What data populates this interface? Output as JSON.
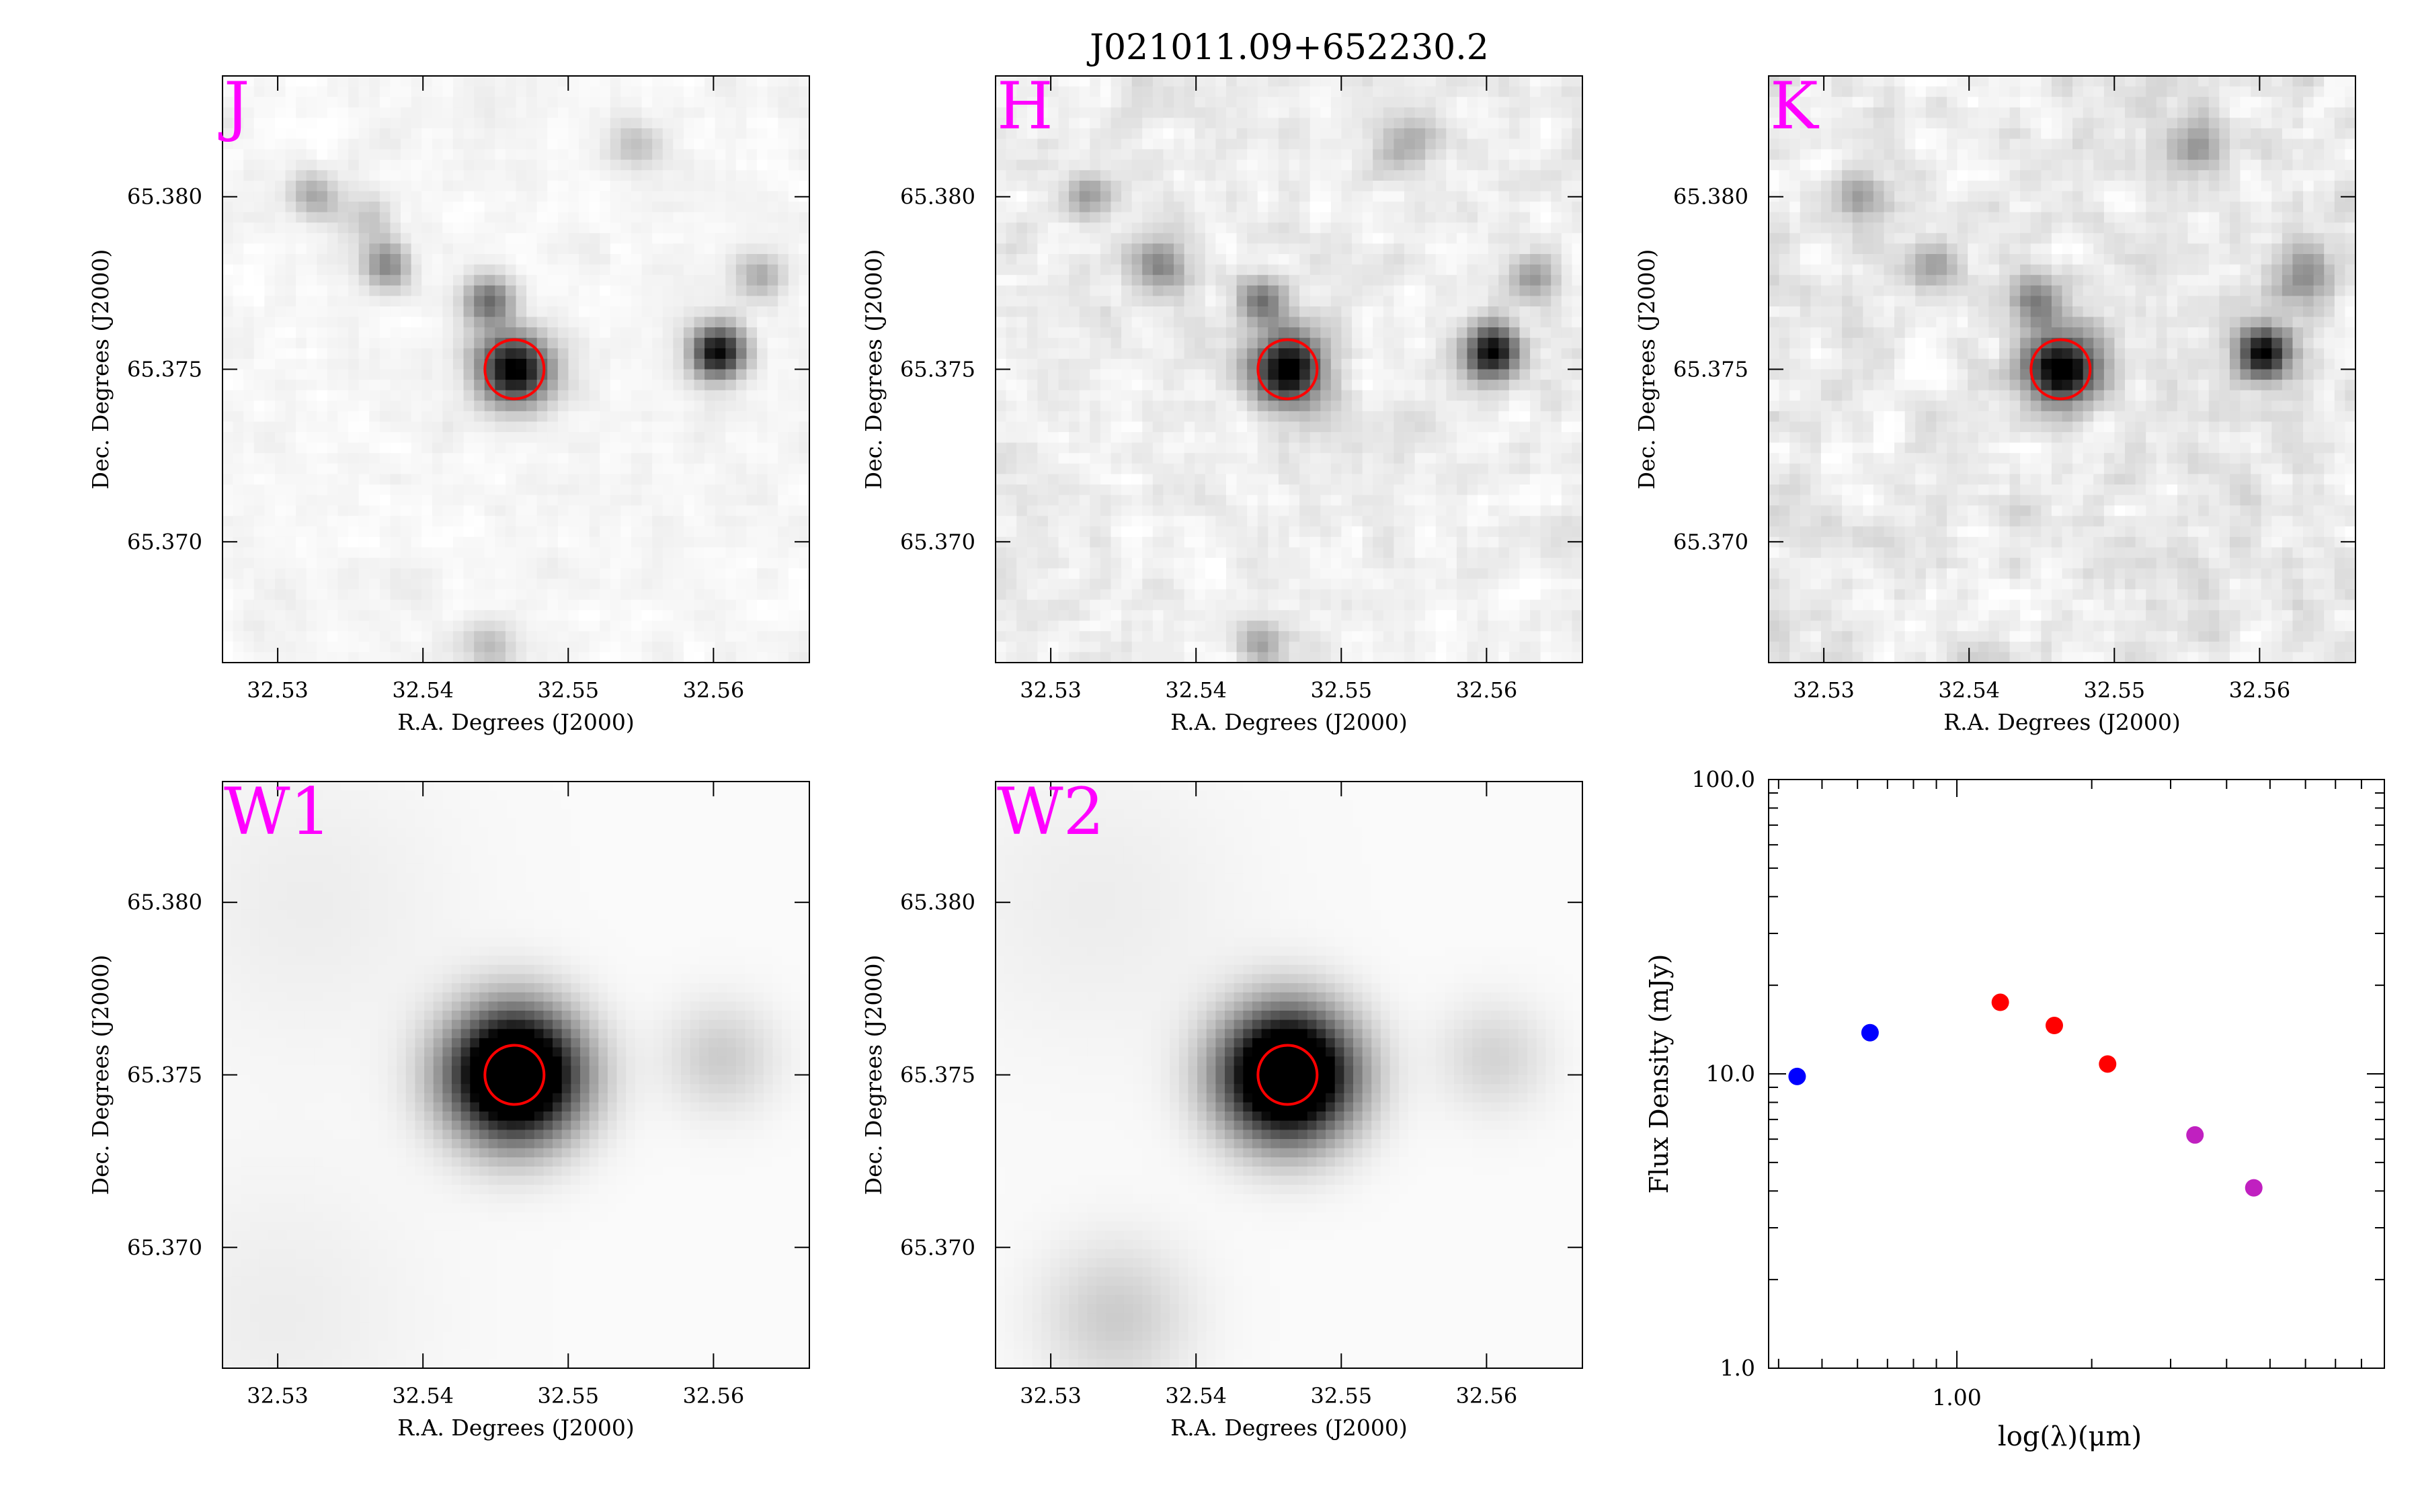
{
  "figure": {
    "title": "J021011.09+652230.2"
  },
  "image_panels": [
    {
      "band": "J",
      "xlabel": "R.A. Degrees (J2000)",
      "ylabel": "Dec. Degrees (J2000)",
      "xlim": [
        32.5262,
        32.5666
      ],
      "ylim": [
        65.3665,
        65.3835
      ],
      "x_ticks": [
        32.53,
        32.54,
        32.55,
        32.56
      ],
      "x_tick_labels": [
        "32.53",
        "32.54",
        "32.55",
        "32.56"
      ],
      "y_ticks": [
        65.37,
        65.375,
        65.38
      ],
      "y_tick_labels": [
        "65.370",
        "65.375",
        "65.380"
      ],
      "style": "sharp",
      "sources": [
        {
          "ra": 32.5463,
          "dec": 65.375,
          "amp": 1.0,
          "sigma": 0.00075
        },
        {
          "ra": 32.5603,
          "dec": 65.3755,
          "amp": 0.95,
          "sigma": 0.00055
        },
        {
          "ra": 32.5445,
          "dec": 65.377,
          "amp": 0.55,
          "sigma": 0.0005
        },
        {
          "ra": 32.5375,
          "dec": 65.378,
          "amp": 0.45,
          "sigma": 0.0005
        },
        {
          "ra": 32.5325,
          "dec": 65.38,
          "amp": 0.3,
          "sigma": 0.0005
        },
        {
          "ra": 32.5362,
          "dec": 65.3793,
          "amp": 0.18,
          "sigma": 0.0005
        },
        {
          "ra": 32.5632,
          "dec": 65.3777,
          "amp": 0.3,
          "sigma": 0.0005
        },
        {
          "ra": 32.5545,
          "dec": 65.3815,
          "amp": 0.2,
          "sigma": 0.0005
        },
        {
          "ra": 32.5445,
          "dec": 65.367,
          "amp": 0.25,
          "sigma": 0.0005
        }
      ],
      "marker": {
        "ra": 32.5463,
        "dec": 65.375,
        "color": "#ff0000"
      },
      "noise": 0.07
    },
    {
      "band": "H",
      "xlabel": "R.A. Degrees (J2000)",
      "ylabel": "Dec. Degrees (J2000)",
      "xlim": [
        32.5262,
        32.5666
      ],
      "ylim": [
        65.3665,
        65.3835
      ],
      "x_ticks": [
        32.53,
        32.54,
        32.55,
        32.56
      ],
      "x_tick_labels": [
        "32.53",
        "32.54",
        "32.55",
        "32.56"
      ],
      "y_ticks": [
        65.37,
        65.375,
        65.38
      ],
      "y_tick_labels": [
        "65.370",
        "65.375",
        "65.380"
      ],
      "style": "sharp",
      "sources": [
        {
          "ra": 32.5463,
          "dec": 65.375,
          "amp": 1.0,
          "sigma": 0.00075
        },
        {
          "ra": 32.5603,
          "dec": 65.3755,
          "amp": 0.95,
          "sigma": 0.00055
        },
        {
          "ra": 32.5445,
          "dec": 65.377,
          "amp": 0.5,
          "sigma": 0.0005
        },
        {
          "ra": 32.5375,
          "dec": 65.378,
          "amp": 0.45,
          "sigma": 0.0005
        },
        {
          "ra": 32.5325,
          "dec": 65.38,
          "amp": 0.35,
          "sigma": 0.0005
        },
        {
          "ra": 32.5632,
          "dec": 65.3777,
          "amp": 0.3,
          "sigma": 0.0005
        },
        {
          "ra": 32.5545,
          "dec": 65.3815,
          "amp": 0.25,
          "sigma": 0.0006
        },
        {
          "ra": 32.5445,
          "dec": 65.367,
          "amp": 0.3,
          "sigma": 0.0005
        }
      ],
      "marker": {
        "ra": 32.5463,
        "dec": 65.375,
        "color": "#ff0000"
      },
      "noise": 0.13
    },
    {
      "band": "K",
      "xlabel": "R.A. Degrees (J2000)",
      "ylabel": "Dec. Degrees (J2000)",
      "xlim": [
        32.5262,
        32.5666
      ],
      "ylim": [
        65.3665,
        65.3835
      ],
      "x_ticks": [
        32.53,
        32.54,
        32.55,
        32.56
      ],
      "x_tick_labels": [
        "32.53",
        "32.54",
        "32.55",
        "32.56"
      ],
      "y_ticks": [
        65.37,
        65.375,
        65.38
      ],
      "y_tick_labels": [
        "65.370",
        "65.375",
        "65.380"
      ],
      "style": "sharp",
      "sources": [
        {
          "ra": 32.5463,
          "dec": 65.375,
          "amp": 1.0,
          "sigma": 0.00075
        },
        {
          "ra": 32.5603,
          "dec": 65.3755,
          "amp": 0.95,
          "sigma": 0.00055
        },
        {
          "ra": 32.5445,
          "dec": 65.377,
          "amp": 0.45,
          "sigma": 0.0005
        },
        {
          "ra": 32.5375,
          "dec": 65.378,
          "amp": 0.35,
          "sigma": 0.0005
        },
        {
          "ra": 32.5325,
          "dec": 65.38,
          "amp": 0.3,
          "sigma": 0.0005
        },
        {
          "ra": 32.5632,
          "dec": 65.3777,
          "amp": 0.4,
          "sigma": 0.0006
        },
        {
          "ra": 32.5555,
          "dec": 65.3815,
          "amp": 0.25,
          "sigma": 0.0006
        }
      ],
      "marker": {
        "ra": 32.5463,
        "dec": 65.375,
        "color": "#ff0000"
      },
      "noise": 0.16
    },
    {
      "band": "W1",
      "xlabel": "R.A. Degrees (J2000)",
      "ylabel": "Dec. Degrees (J2000)",
      "xlim": [
        32.5262,
        32.5666
      ],
      "ylim": [
        65.3665,
        65.3835
      ],
      "x_ticks": [
        32.53,
        32.54,
        32.55,
        32.56
      ],
      "x_tick_labels": [
        "32.53",
        "32.54",
        "32.55",
        "32.56"
      ],
      "y_ticks": [
        65.37,
        65.375,
        65.38
      ],
      "y_tick_labels": [
        "65.370",
        "65.375",
        "65.380"
      ],
      "style": "smooth",
      "sources": [
        {
          "ra": 32.5463,
          "dec": 65.375,
          "amp": 1.6,
          "sigma": 0.0013
        },
        {
          "ra": 32.5605,
          "dec": 65.3755,
          "amp": 0.18,
          "sigma": 0.0011
        },
        {
          "ra": 32.532,
          "dec": 65.38,
          "amp": 0.05,
          "sigma": 0.003
        },
        {
          "ra": 32.53,
          "dec": 65.368,
          "amp": 0.05,
          "sigma": 0.003
        }
      ],
      "marker": {
        "ra": 32.5463,
        "dec": 65.375,
        "color": "#ff0000"
      },
      "noise": 0.0
    },
    {
      "band": "W2",
      "xlabel": "R.A. Degrees (J2000)",
      "ylabel": "Dec. Degrees (J2000)",
      "xlim": [
        32.5262,
        32.5666
      ],
      "ylim": [
        65.3665,
        65.3835
      ],
      "x_ticks": [
        32.53,
        32.54,
        32.55,
        32.56
      ],
      "x_tick_labels": [
        "32.53",
        "32.54",
        "32.55",
        "32.56"
      ],
      "y_ticks": [
        65.37,
        65.375,
        65.38
      ],
      "y_tick_labels": [
        "65.370",
        "65.375",
        "65.380"
      ],
      "style": "smooth",
      "sources": [
        {
          "ra": 32.5463,
          "dec": 65.375,
          "amp": 1.6,
          "sigma": 0.0013
        },
        {
          "ra": 32.5605,
          "dec": 65.3755,
          "amp": 0.15,
          "sigma": 0.0011
        },
        {
          "ra": 32.5345,
          "dec": 65.368,
          "amp": 0.18,
          "sigma": 0.0015
        },
        {
          "ra": 32.533,
          "dec": 65.38,
          "amp": 0.05,
          "sigma": 0.003
        }
      ],
      "marker": {
        "ra": 32.5463,
        "dec": 65.375,
        "color": "#ff0000"
      },
      "noise": 0.0
    }
  ],
  "chart_data": {
    "type": "scatter",
    "title": "",
    "xlabel": "log(λ)(μm)",
    "ylabel": "Flux Density (mJy)",
    "x_scale": "log",
    "y_scale": "log",
    "xlim": [
      0.38,
      9.0
    ],
    "ylim": [
      1.0,
      100.0
    ],
    "x_tick_labels": [
      {
        "value": 1.0,
        "label": "1.00"
      }
    ],
    "y_tick_labels": [
      {
        "value": 1.0,
        "label": "1.0"
      },
      {
        "value": 10.0,
        "label": "10.0"
      },
      {
        "value": 100.0,
        "label": "100.0"
      }
    ],
    "series": [
      {
        "color": "#0000ff",
        "points": [
          {
            "x": 0.44,
            "y": 9.8
          },
          {
            "x": 0.64,
            "y": 13.8
          }
        ]
      },
      {
        "color": "#ff0000",
        "points": [
          {
            "x": 1.25,
            "y": 17.5
          },
          {
            "x": 1.65,
            "y": 14.6
          },
          {
            "x": 2.17,
            "y": 10.8
          }
        ]
      },
      {
        "color": "#c020c0",
        "points": [
          {
            "x": 3.4,
            "y": 6.2
          },
          {
            "x": 4.6,
            "y": 4.1
          }
        ]
      }
    ],
    "grid": false
  }
}
